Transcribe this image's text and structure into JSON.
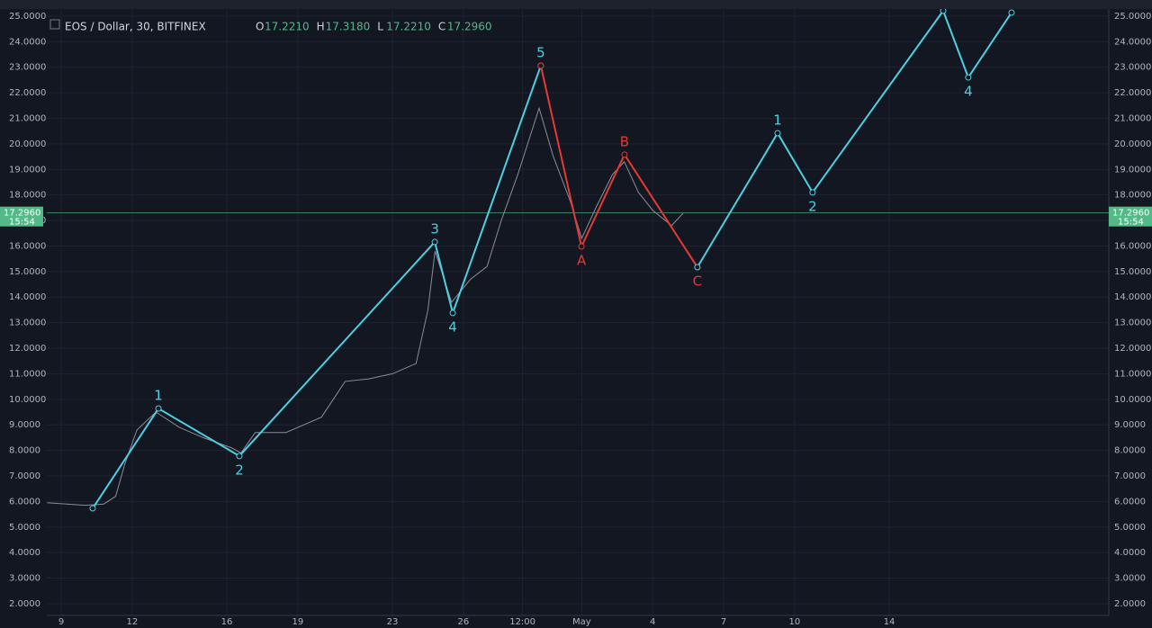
{
  "header": {
    "symbol": "EOS / Dollar, 30, BITFINEX",
    "ohlc": [
      {
        "key": "O",
        "text": "17.2210"
      },
      {
        "key": "H",
        "text": "17.3180"
      },
      {
        "key": "L",
        "text": "17.2210"
      },
      {
        "key": "C",
        "text": "17.2960"
      }
    ]
  },
  "chart_data": {
    "type": "line",
    "xlim": [
      8.39,
      53.28
    ],
    "ylim": [
      1.54,
      25.28
    ],
    "xticks": [
      9,
      12,
      16,
      19,
      23,
      26,
      {
        "value": 28.5,
        "label": "12:00"
      },
      {
        "value": 31,
        "label": "May"
      },
      {
        "value": 34,
        "label": "4"
      },
      {
        "value": 37,
        "label": "7"
      },
      {
        "value": 40,
        "label": "10"
      },
      {
        "value": 44,
        "label": "14"
      }
    ],
    "yticks": [
      {
        "value": 2,
        "label": "2.0000"
      },
      {
        "value": 3,
        "label": "3.0000"
      },
      {
        "value": 4,
        "label": "4.0000"
      },
      {
        "value": 5,
        "label": "5.0000"
      },
      {
        "value": 6,
        "label": "6.0000"
      },
      {
        "value": 7,
        "label": "7.0000"
      },
      {
        "value": 8,
        "label": "8.0000"
      },
      {
        "value": 9,
        "label": "9.0000"
      },
      {
        "value": 10,
        "label": "10.0000"
      },
      {
        "value": 11,
        "label": "11.0000"
      },
      {
        "value": 12,
        "label": "12.0000"
      },
      {
        "value": 13,
        "label": "13.0000"
      },
      {
        "value": 14,
        "label": "14.0000"
      },
      {
        "value": 15,
        "label": "15.0000"
      },
      {
        "value": 16,
        "label": "16.0000"
      },
      {
        "value": 17,
        "label": "17.0000"
      },
      {
        "value": 18,
        "label": "18.0000"
      },
      {
        "value": 19,
        "label": "19.0000"
      },
      {
        "value": 20,
        "label": "20.0000"
      },
      {
        "value": 21,
        "label": "21.0000"
      },
      {
        "value": 22,
        "label": "22.0000"
      },
      {
        "value": 23,
        "label": "23.0000"
      },
      {
        "value": 24,
        "label": "24.0000"
      },
      {
        "value": 25,
        "label": "25.0000"
      }
    ],
    "grid": true,
    "last_price": {
      "value": 17.296,
      "label": "17.2960",
      "countdown": "15:54"
    },
    "series": [
      {
        "color": "#8a8d96",
        "x": [
          8.4,
          10,
          10.8,
          11.3,
          11.7,
          12.2,
          13,
          14,
          15,
          16.2,
          16.6,
          17.2,
          18.5,
          20,
          21,
          22,
          23,
          24,
          24.5,
          24.8,
          25.5,
          26.3,
          27,
          27.6,
          28.3,
          29.2,
          29.8,
          30.5,
          31,
          31.6,
          32.3,
          32.8,
          33.4,
          34,
          34.8,
          35.3
        ],
        "values": [
          5.95,
          5.85,
          5.9,
          6.2,
          7.5,
          8.8,
          9.5,
          8.9,
          8.5,
          8.1,
          7.9,
          8.7,
          8.7,
          9.3,
          10.7,
          10.8,
          11.0,
          11.4,
          13.5,
          15.8,
          13.8,
          14.7,
          15.2,
          17,
          18.8,
          21.4,
          19.5,
          17.8,
          16.3,
          17.5,
          18.8,
          19.3,
          18.1,
          17.4,
          16.8,
          17.3
        ]
      },
      {
        "color": "#4dd0e1",
        "x": [
          10.33,
          13.11,
          16.53,
          24.79,
          25.55,
          29.27
        ],
        "values": [
          5.73,
          9.64,
          7.78,
          16.16,
          13.38,
          23.06
        ],
        "point_labels": [
          null,
          "1",
          "2",
          "3",
          "4",
          "5"
        ]
      },
      {
        "color": "#e53935",
        "x": [
          29.27,
          30.99,
          32.81,
          35.89
        ],
        "values": [
          23.06,
          15.98,
          19.58,
          15.17
        ],
        "point_labels": [
          null,
          "A",
          "B",
          "C"
        ]
      },
      {
        "color": "#4dd0e1",
        "x": [
          35.89,
          39.28,
          40.76,
          46.28,
          47.34,
          49.17
        ],
        "values": [
          15.17,
          20.42,
          18.1,
          25.21,
          22.6,
          25.14
        ],
        "point_labels": [
          null,
          "1",
          "2",
          null,
          "4",
          null
        ]
      }
    ]
  }
}
